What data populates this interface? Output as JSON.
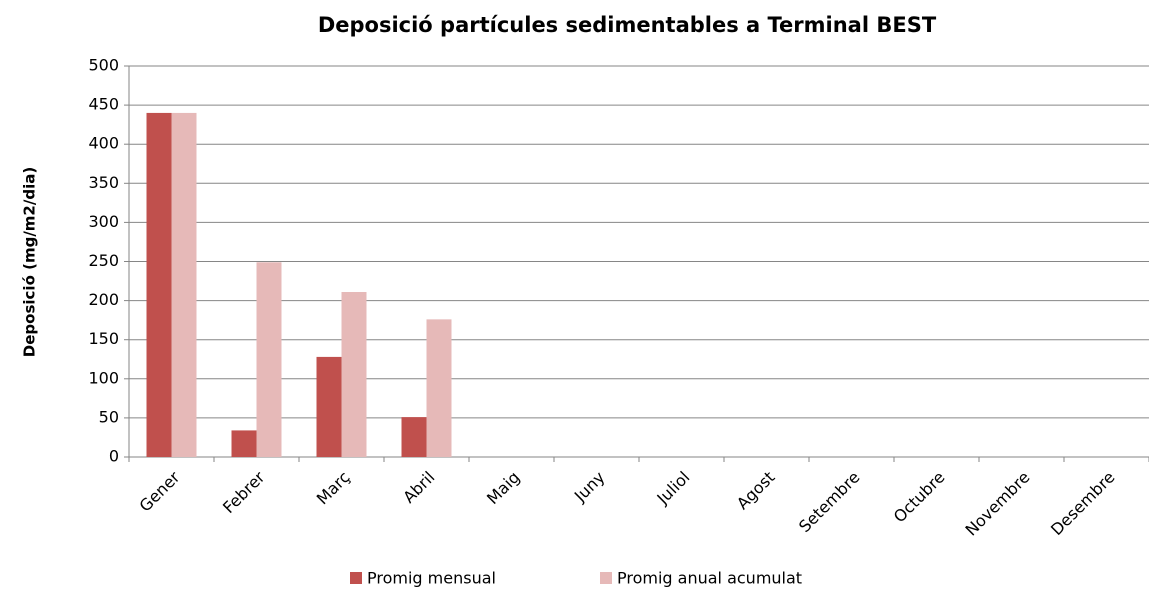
{
  "chart_data": {
    "type": "bar",
    "title": "Deposició partícules sedimentables a Terminal BEST",
    "y_label": "Deposició (mg/m2/dia)",
    "categories": [
      "Gener",
      "Febrer",
      "Març",
      "Abril",
      "Maig",
      "Juny",
      "Juliol",
      "Agost",
      "Setembre",
      "Octubre",
      "Novembre",
      "Desembre"
    ],
    "series": [
      {
        "name": "Promig mensual",
        "color": "#c0504d",
        "values": [
          440,
          34,
          128,
          51,
          null,
          null,
          null,
          null,
          null,
          null,
          null,
          null
        ]
      },
      {
        "name": "Promig anual acumulat",
        "color": "#e6b9b8",
        "values": [
          440,
          249,
          211,
          176,
          null,
          null,
          null,
          null,
          null,
          null,
          null,
          null
        ]
      }
    ],
    "ylim": [
      0,
      500
    ],
    "yticks": [
      0,
      50,
      100,
      150,
      200,
      250,
      300,
      350,
      400,
      450,
      500
    ],
    "grid": true
  }
}
